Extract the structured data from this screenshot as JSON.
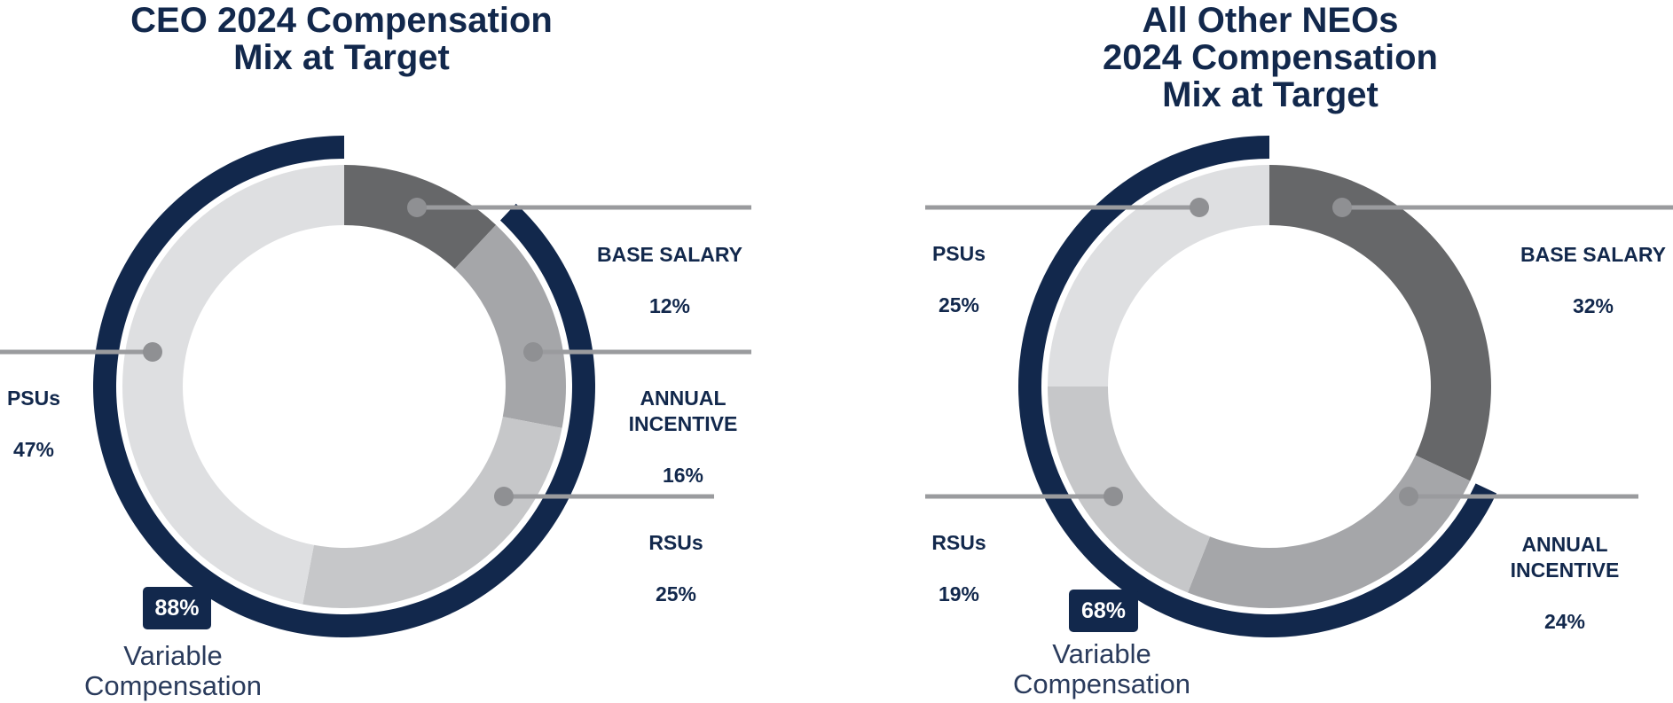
{
  "chart_data": [
    {
      "type": "pie",
      "title": "CEO 2024 Compensation\nMix at Target",
      "segments": [
        {
          "label": "BASE SALARY",
          "value": 12,
          "pct": "12%",
          "color": "#666769"
        },
        {
          "label": "ANNUAL\nINCENTIVE",
          "value": 16,
          "pct": "16%",
          "color": "#a5a6a9"
        },
        {
          "label": "RSUs",
          "value": 25,
          "pct": "25%",
          "color": "#c6c7c9"
        },
        {
          "label": "PSUs",
          "value": 47,
          "pct": "47%",
          "color": "#dedfe1"
        }
      ],
      "variable_compensation": {
        "value": 88,
        "pct": "88%",
        "label": "Variable\nCompensation",
        "color": "#12284c"
      }
    },
    {
      "type": "pie",
      "title": "All Other NEOs\n2024 Compensation\nMix at Target",
      "segments": [
        {
          "label": "BASE SALARY",
          "value": 32,
          "pct": "32%",
          "color": "#666769"
        },
        {
          "label": "ANNUAL\nINCENTIVE",
          "value": 24,
          "pct": "24%",
          "color": "#a5a6a9"
        },
        {
          "label": "RSUs",
          "value": 19,
          "pct": "19%",
          "color": "#c6c7c9"
        },
        {
          "label": "PSUs",
          "value": 25,
          "pct": "25%",
          "color": "#dedfe1"
        }
      ],
      "variable_compensation": {
        "value": 68,
        "pct": "68%",
        "label": "Variable\nCompensation",
        "color": "#12284c"
      }
    }
  ],
  "colors": {
    "accent": "#12284c",
    "leader": "#9a9b9e",
    "dot": "#8f9093"
  }
}
